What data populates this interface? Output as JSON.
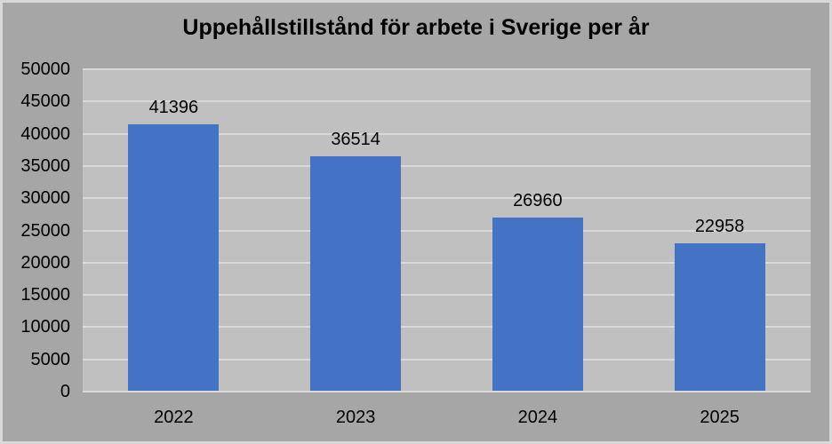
{
  "chart_data": {
    "type": "bar",
    "title": "Uppehållstillstånd för arbete i Sverige per år",
    "categories": [
      "2022",
      "2023",
      "2024",
      "2025"
    ],
    "values": [
      41396,
      36514,
      26960,
      22958
    ],
    "data_labels": [
      41396,
      36514,
      26960,
      22958
    ],
    "xlabel": "",
    "ylabel": "",
    "ylim": [
      0,
      50000
    ],
    "yticks": [
      0,
      5000,
      10000,
      15000,
      20000,
      25000,
      30000,
      35000,
      40000,
      45000,
      50000
    ],
    "grid": true,
    "legend": false,
    "colors": {
      "bar": "#4472c4",
      "background": "#a6a6a6",
      "plot_background": "#c0c0c0",
      "gridline": "#d9d9d9",
      "border": "#d9d9d9",
      "text": "#000000"
    }
  }
}
